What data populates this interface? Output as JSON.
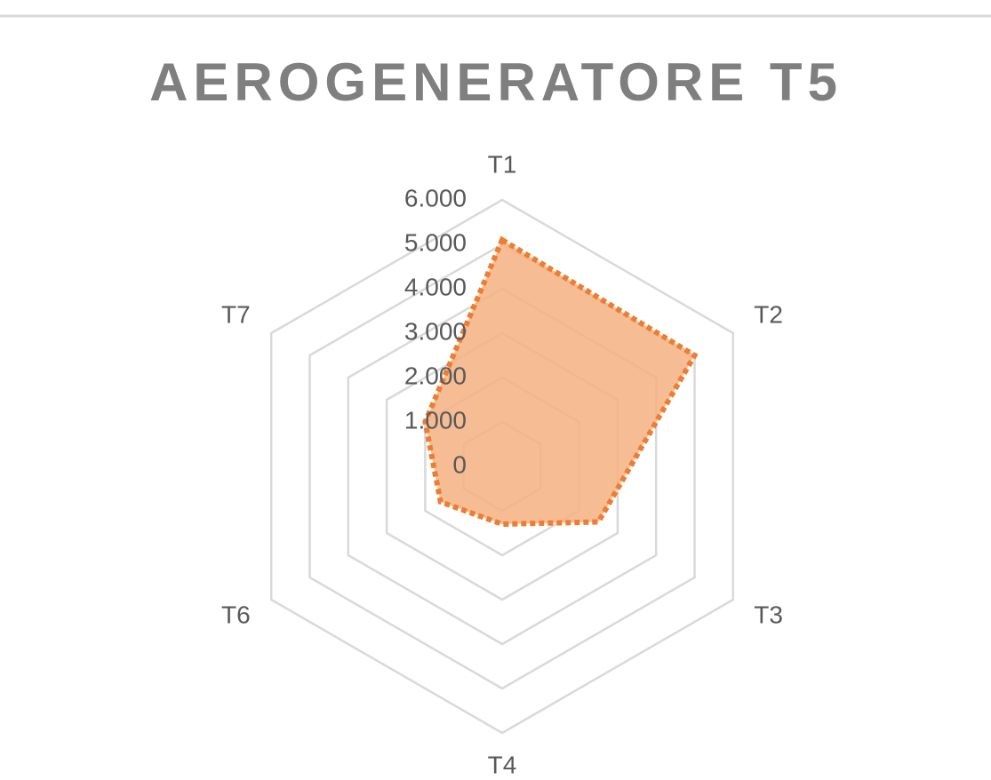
{
  "chart_data": {
    "type": "radar",
    "title": "AEROGENERATORE T5",
    "categories": [
      "T1",
      "T2",
      "T3",
      "T4",
      "T6",
      "T7"
    ],
    "values": [
      5100,
      5000,
      2500,
      1300,
      1600,
      2000
    ],
    "color": "#ed7d31",
    "fill": "#f4b183",
    "ylim": [
      0,
      6000
    ],
    "yticks": [
      0,
      {
        "value": 1000,
        "label": "1.000"
      },
      {
        "value": 2000,
        "label": "2.000"
      },
      {
        "value": 3000,
        "label": "3.000"
      },
      {
        "value": 4000,
        "label": "4.000"
      },
      {
        "value": 5000,
        "label": "5.000"
      },
      {
        "value": 6000,
        "label": "6.000"
      }
    ],
    "grid": true
  }
}
